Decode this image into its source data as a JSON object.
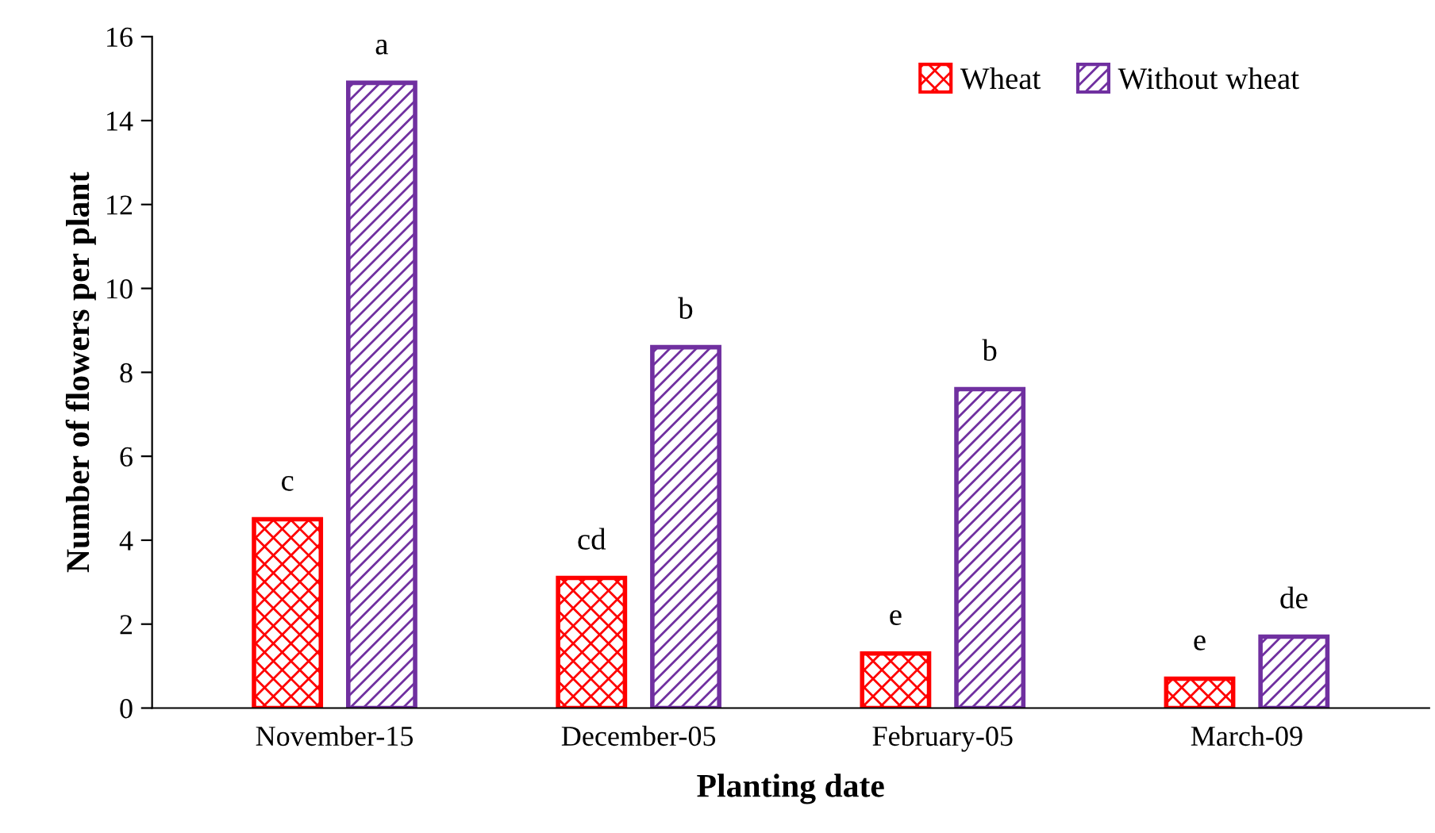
{
  "chart_data": {
    "type": "bar",
    "xlabel": "Planting date",
    "ylabel": "Number of flowers per plant",
    "categories": [
      "November-15",
      "December-05",
      "February-05",
      "March-09"
    ],
    "series": [
      {
        "name": "Wheat",
        "color": "#ff0000",
        "values": [
          4.5,
          3.1,
          1.3,
          0.7
        ]
      },
      {
        "name": "Without wheat",
        "color": "#7030a0",
        "values": [
          14.9,
          8.6,
          7.6,
          1.7
        ]
      }
    ],
    "annotations": [
      "c",
      "a",
      "cd",
      "b",
      "e",
      "b",
      "e",
      "de"
    ],
    "ylim": [
      0,
      16
    ],
    "yticks": [
      0,
      2,
      4,
      6,
      8,
      10,
      12,
      14,
      16
    ],
    "legend": "top right",
    "grid": false
  }
}
